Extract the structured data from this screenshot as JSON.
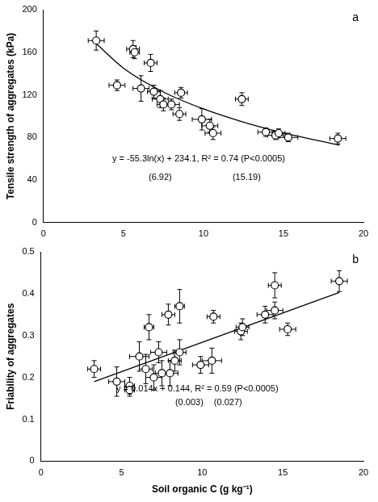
{
  "chart_data": [
    {
      "type": "scatter",
      "panel": "a",
      "ylabel": "Tensile strength of aggregates (kPa)",
      "x": [
        3.3,
        4.6,
        5.6,
        5.7,
        6.1,
        6.7,
        6.9,
        7.3,
        7.5,
        8.0,
        8.5,
        8.6,
        9.9,
        10.4,
        10.6,
        12.4,
        13.9,
        14.5,
        14.7,
        15.3,
        18.4
      ],
      "series": [
        {
          "values": [
            171,
            129,
            163,
            160,
            126,
            150,
            123,
            116,
            111,
            111,
            102,
            122,
            97,
            91,
            84,
            116,
            85,
            82,
            84,
            80,
            79
          ],
          "x_err": [
            0.5,
            0.5,
            0.4,
            0.3,
            0.5,
            0.4,
            0.4,
            0.5,
            0.4,
            0.5,
            0.4,
            0.4,
            0.6,
            0.5,
            0.5,
            0.4,
            0.5,
            0.5,
            0.4,
            0.6,
            0.5
          ],
          "y_err": [
            9,
            5,
            8,
            6,
            12,
            8,
            6,
            8,
            6,
            5,
            6,
            5,
            10,
            6,
            6,
            6,
            4,
            4,
            4,
            4,
            5
          ],
          "marker": "circle",
          "color": "#000000"
        }
      ],
      "fit": {
        "x": [
          3.3,
          5,
          7.5,
          10,
          12.5,
          15,
          18.5
        ],
        "values": [
          168.1,
          145.1,
          122.7,
          106.8,
          94.4,
          84.3,
          72.7
        ],
        "line_style": "solid",
        "color": "#000000"
      },
      "annotations": [
        "y = -55.3ln(x) + 234.1, R² = 0.74 (P<0.0005)",
        "(6.92)",
        "(15.19)"
      ],
      "xlim": [
        0,
        20
      ],
      "xticks": [
        0,
        5,
        10,
        15,
        20
      ],
      "ylim": [
        0,
        200
      ],
      "yticks": [
        0,
        40,
        80,
        120,
        160,
        200
      ],
      "grid": false
    },
    {
      "type": "scatter",
      "panel": "b",
      "ylabel": "Friability of aggregates",
      "xlabel": "Soil organic C (g kg⁻¹)",
      "x": [
        3.3,
        4.7,
        5.5,
        5.5,
        6.1,
        6.5,
        6.7,
        7.0,
        7.3,
        7.5,
        7.9,
        8.0,
        8.3,
        8.6,
        8.6,
        9.9,
        10.6,
        10.7,
        12.4,
        12.5,
        13.9,
        14.5,
        14.5,
        15.3,
        18.5
      ],
      "series": [
        {
          "values": [
            0.22,
            0.19,
            0.18,
            0.17,
            0.25,
            0.22,
            0.32,
            0.2,
            0.26,
            0.21,
            0.35,
            0.21,
            0.24,
            0.37,
            0.26,
            0.23,
            0.24,
            0.345,
            0.31,
            0.32,
            0.35,
            0.42,
            0.36,
            0.315,
            0.43
          ],
          "x_err": [
            0.4,
            0.5,
            0.3,
            0.3,
            0.6,
            0.4,
            0.3,
            0.5,
            0.5,
            0.4,
            0.4,
            0.5,
            0.4,
            0.3,
            0.4,
            0.5,
            0.6,
            0.4,
            0.4,
            0.4,
            0.5,
            0.4,
            0.5,
            0.5,
            0.5
          ],
          "y_err": [
            0.02,
            0.035,
            0.02,
            0.015,
            0.035,
            0.035,
            0.03,
            0.03,
            0.025,
            0.03,
            0.025,
            0.03,
            0.025,
            0.04,
            0.03,
            0.02,
            0.03,
            0.015,
            0.02,
            0.02,
            0.02,
            0.03,
            0.02,
            0.015,
            0.025
          ],
          "marker": "circle",
          "color": "#000000"
        }
      ],
      "fit": {
        "x": [
          3.3,
          18.5
        ],
        "values": [
          0.19,
          0.403
        ],
        "line_style": "solid",
        "color": "#000000"
      },
      "annotations": [
        "y = 0.014x + 0.144, R² = 0.59 (P<0.0005)",
        "(0.003)",
        "(0.027)"
      ],
      "xlim": [
        0,
        20
      ],
      "xticks": [
        0,
        5,
        10,
        15,
        20
      ],
      "ylim": [
        0,
        0.5
      ],
      "yticks": [
        0,
        0.1,
        0.2,
        0.3,
        0.4,
        0.5
      ],
      "grid": false
    }
  ]
}
